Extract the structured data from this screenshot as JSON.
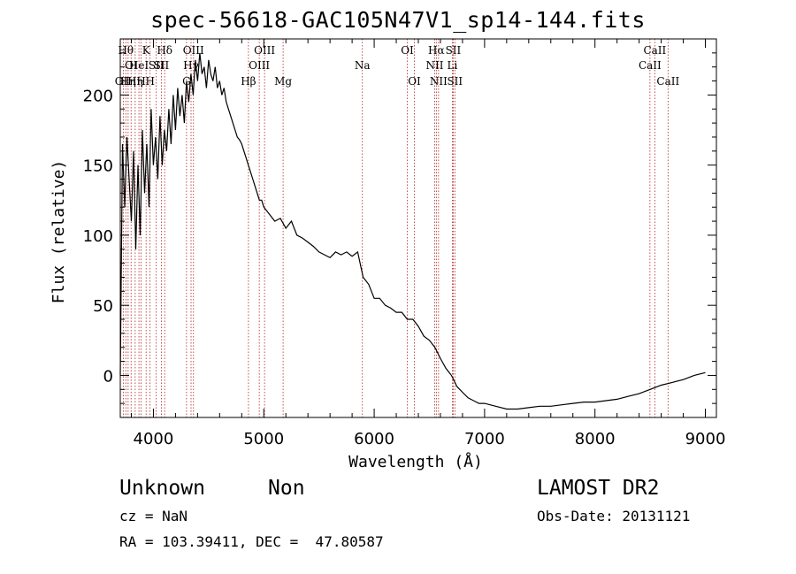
{
  "title": "spec-56618-GAC105N47V1_sp14-144.fits",
  "footer": {
    "class": "Unknown",
    "subclass": "Non",
    "cz": "cz = NaN",
    "radec": "RA = 103.39411, DEC =  47.80587",
    "survey": "LAMOST DR2",
    "obsdate": "Obs-Date: 20131121"
  },
  "chart_data": {
    "type": "line",
    "title": "spec-56618-GAC105N47V1_sp14-144.fits",
    "xlabel": "Wavelength (Å)",
    "ylabel": "Flux (relative)",
    "xlim": [
      3700,
      9100
    ],
    "ylim": [
      -30,
      240
    ],
    "xticks": [
      4000,
      5000,
      6000,
      7000,
      8000,
      9000
    ],
    "yticks": [
      0,
      50,
      100,
      150,
      200
    ],
    "grid": false,
    "series": [
      {
        "x": [
          3700,
          3720,
          3740,
          3760,
          3780,
          3800,
          3820,
          3840,
          3860,
          3880,
          3900,
          3920,
          3940,
          3960,
          3980,
          4000,
          4020,
          4040,
          4060,
          4080,
          4100,
          4120,
          4140,
          4160,
          4180,
          4200,
          4220,
          4240,
          4260,
          4280,
          4300,
          4320,
          4340,
          4360,
          4380,
          4400,
          4420,
          4440,
          4460,
          4480,
          4500,
          4520,
          4540,
          4560,
          4580,
          4600,
          4620,
          4640,
          4660,
          4680,
          4700,
          4720,
          4740,
          4760,
          4780,
          4800,
          4820,
          4840,
          4860,
          4880,
          4900,
          4920,
          4940,
          4960,
          4980,
          5000,
          5050,
          5100,
          5150,
          5200,
          5250,
          5300,
          5350,
          5400,
          5450,
          5500,
          5550,
          5600,
          5650,
          5700,
          5750,
          5800,
          5850,
          5900,
          5950,
          6000,
          6050,
          6100,
          6150,
          6200,
          6250,
          6300,
          6350,
          6400,
          6450,
          6500,
          6550,
          6600,
          6650,
          6700,
          6750,
          6800,
          6850,
          6900,
          6950,
          7000,
          7100,
          7200,
          7300,
          7400,
          7500,
          7600,
          7700,
          7800,
          7900,
          8000,
          8100,
          8200,
          8300,
          8400,
          8500,
          8600,
          8700,
          8800,
          8900,
          9000
        ],
        "y": [
          0,
          165,
          120,
          170,
          140,
          110,
          160,
          90,
          150,
          100,
          175,
          130,
          165,
          120,
          190,
          150,
          170,
          140,
          185,
          150,
          175,
          160,
          190,
          165,
          200,
          175,
          205,
          185,
          200,
          180,
          210,
          195,
          215,
          200,
          225,
          210,
          230,
          215,
          220,
          205,
          225,
          215,
          210,
          220,
          205,
          210,
          200,
          205,
          195,
          190,
          185,
          180,
          175,
          170,
          168,
          165,
          160,
          155,
          150,
          145,
          140,
          135,
          130,
          125,
          125,
          120,
          115,
          110,
          112,
          105,
          110,
          100,
          98,
          95,
          92,
          88,
          86,
          84,
          88,
          86,
          88,
          85,
          88,
          70,
          65,
          55,
          55,
          50,
          48,
          45,
          45,
          40,
          40,
          35,
          28,
          25,
          20,
          12,
          5,
          0,
          -8,
          -12,
          -16,
          -18,
          -20,
          -20,
          -22,
          -24,
          -24,
          -23,
          -22,
          -22,
          -21,
          -20,
          -19,
          -19,
          -18,
          -17,
          -15,
          -13,
          -10,
          -7,
          -5,
          -3,
          0,
          2
        ]
      }
    ],
    "line_markers": [
      {
        "wl": 3727,
        "label": "OII",
        "row": 3
      },
      {
        "wl": 3750,
        "label": "Hθ",
        "row": 1
      },
      {
        "wl": 3771,
        "label": "Hη",
        "row": 3
      },
      {
        "wl": 3798,
        "label": "OI",
        "row": 2
      },
      {
        "wl": 3835,
        "label": "Hη",
        "row": 3
      },
      {
        "wl": 3869,
        "label": "HeI",
        "row": 2
      },
      {
        "wl": 3889,
        "label": "H",
        "row": 3
      },
      {
        "wl": 3934,
        "label": "K",
        "row": 1
      },
      {
        "wl": 3970,
        "label": "H",
        "row": 3
      },
      {
        "wl": 4026,
        "label": "SII",
        "row": 2
      },
      {
        "wl": 4072,
        "label": "SII",
        "row": 2
      },
      {
        "wl": 4102,
        "label": "Hδ",
        "row": 1
      },
      {
        "wl": 4300,
        "label": "G",
        "row": 3
      },
      {
        "wl": 4341,
        "label": "Hγ",
        "row": 2
      },
      {
        "wl": 4363,
        "label": "OIII",
        "row": 1
      },
      {
        "wl": 4861,
        "label": "Hβ",
        "row": 3
      },
      {
        "wl": 4959,
        "label": "OIII",
        "row": 2
      },
      {
        "wl": 5007,
        "label": "OIII",
        "row": 1
      },
      {
        "wl": 5175,
        "label": "Mg",
        "row": 3
      },
      {
        "wl": 5893,
        "label": "Na",
        "row": 2
      },
      {
        "wl": 6300,
        "label": "OI",
        "row": 1
      },
      {
        "wl": 6364,
        "label": "OI",
        "row": 3
      },
      {
        "wl": 6548,
        "label": "NII",
        "row": 2
      },
      {
        "wl": 6563,
        "label": "Hα",
        "row": 1
      },
      {
        "wl": 6583,
        "label": "NII",
        "row": 3
      },
      {
        "wl": 6708,
        "label": "Li",
        "row": 2
      },
      {
        "wl": 6716,
        "label": "SII",
        "row": 1
      },
      {
        "wl": 6731,
        "label": "SII",
        "row": 3
      },
      {
        "wl": 8498,
        "label": "CaII",
        "row": 2
      },
      {
        "wl": 8542,
        "label": "CaII",
        "row": 1
      },
      {
        "wl": 8662,
        "label": "CaII",
        "row": 3
      }
    ]
  }
}
